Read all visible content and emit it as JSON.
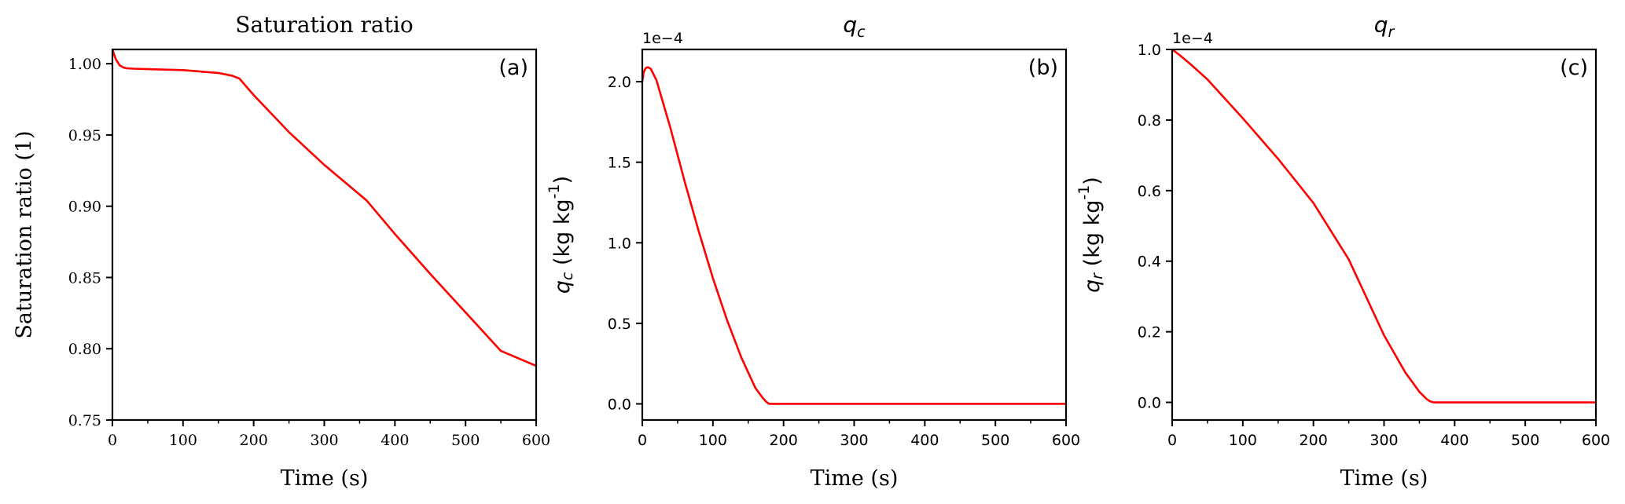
{
  "figure": {
    "line_color": "#ff0000",
    "axis_color": "#000000",
    "background": "#ffffff"
  },
  "chart_data": [
    {
      "type": "line",
      "panel_label": "(a)",
      "title": "Saturation ratio",
      "title_math": false,
      "xlabel": "Time (s)",
      "ylabel": "Saturation ratio (1)",
      "ylabel_math": false,
      "offset_text": "",
      "xlim": [
        0,
        600
      ],
      "ylim": [
        0.75,
        1.01
      ],
      "xticks": [
        0,
        100,
        200,
        300,
        400,
        500,
        600
      ],
      "xtick_labels": [
        "0",
        "100",
        "200",
        "300",
        "400",
        "500",
        "600"
      ],
      "x_minor_ticks": [
        50,
        150,
        250,
        350,
        450,
        550
      ],
      "yticks": [
        0.75,
        0.8,
        0.85,
        0.9,
        0.95,
        1.0
      ],
      "ytick_labels": [
        "0.75",
        "0.80",
        "0.85",
        "0.90",
        "0.95",
        "1.00"
      ],
      "tick_font": "serif",
      "grid": false,
      "series": [
        {
          "x": [
            0,
            2,
            5,
            10,
            15,
            20,
            30,
            50,
            100,
            150,
            170,
            180,
            200,
            250,
            300,
            360,
            400,
            450,
            500,
            550,
            600
          ],
          "y": [
            1.01,
            1.007,
            1.003,
            0.999,
            0.9975,
            0.9968,
            0.9965,
            0.9962,
            0.9955,
            0.9935,
            0.9915,
            0.9895,
            0.978,
            0.952,
            0.929,
            0.904,
            0.8805,
            0.8525,
            0.8255,
            0.7985,
            0.788
          ]
        }
      ]
    },
    {
      "type": "line",
      "panel_label": "(b)",
      "title": "q_c",
      "title_math": true,
      "title_base": "q",
      "title_sub": "c",
      "xlabel": "Time (s)",
      "ylabel": "q_c (kg kg-1)",
      "ylabel_math": true,
      "ylabel_base": "q",
      "ylabel_sub": "c",
      "ylabel_rest": "(kg kg",
      "ylabel_sup": "-1",
      "ylabel_close": ")",
      "offset_text": "1e−4",
      "xlim": [
        0,
        600
      ],
      "ylim": [
        -0.1,
        2.2
      ],
      "xticks": [
        0,
        100,
        200,
        300,
        400,
        500,
        600
      ],
      "xtick_labels": [
        "0",
        "100",
        "200",
        "300",
        "400",
        "500",
        "600"
      ],
      "x_minor_ticks": [
        50,
        150,
        250,
        350,
        450,
        550
      ],
      "yticks": [
        0.0,
        0.5,
        1.0,
        1.5,
        2.0
      ],
      "ytick_labels": [
        "0.0",
        "0.5",
        "1.0",
        "1.5",
        "2.0"
      ],
      "tick_font": "sans",
      "grid": false,
      "series": [
        {
          "x": [
            0,
            2,
            5,
            8,
            12,
            20,
            40,
            60,
            80,
            100,
            120,
            140,
            160,
            170,
            175,
            178,
            180,
            183,
            190,
            250,
            300,
            400,
            500,
            600
          ],
          "y": [
            2.0,
            2.06,
            2.085,
            2.09,
            2.08,
            2.01,
            1.71,
            1.38,
            1.07,
            0.78,
            0.52,
            0.29,
            0.1,
            0.04,
            0.015,
            0.005,
            0.0,
            0.0,
            0.0,
            0.0,
            0.0,
            0.0,
            0.0,
            0.0
          ]
        }
      ]
    },
    {
      "type": "line",
      "panel_label": "(c)",
      "title": "q_r",
      "title_math": true,
      "title_base": "q",
      "title_sub": "r",
      "xlabel": "Time (s)",
      "ylabel": "q_r (kg kg-1)",
      "ylabel_math": true,
      "ylabel_base": "q",
      "ylabel_sub": "r",
      "ylabel_rest": "(kg kg",
      "ylabel_sup": "-1",
      "ylabel_close": ")",
      "offset_text": "1e−4",
      "xlim": [
        0,
        600
      ],
      "ylim": [
        -0.05,
        1.0
      ],
      "xticks": [
        0,
        100,
        200,
        300,
        400,
        500,
        600
      ],
      "xtick_labels": [
        "0",
        "100",
        "200",
        "300",
        "400",
        "500",
        "600"
      ],
      "x_minor_ticks": [
        50,
        150,
        250,
        350,
        450,
        550
      ],
      "yticks": [
        0.0,
        0.2,
        0.4,
        0.6,
        0.8,
        1.0
      ],
      "ytick_labels": [
        "0.0",
        "0.2",
        "0.4",
        "0.6",
        "0.8",
        "1.0"
      ],
      "tick_font": "sans",
      "grid": false,
      "series": [
        {
          "x": [
            0,
            10,
            25,
            50,
            100,
            150,
            200,
            250,
            300,
            330,
            350,
            360,
            365,
            370,
            400,
            500,
            600
          ],
          "y": [
            1.0,
            0.985,
            0.96,
            0.915,
            0.805,
            0.69,
            0.565,
            0.405,
            0.19,
            0.085,
            0.03,
            0.01,
            0.003,
            0.0,
            0.0,
            0.0,
            0.0
          ]
        }
      ]
    }
  ]
}
